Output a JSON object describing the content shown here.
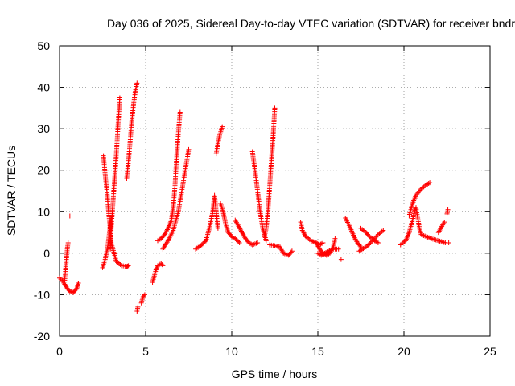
{
  "chart_data": {
    "type": "scatter",
    "title": "Day 036 of 2025, Sidereal Day-to-day VTEC variation (SDTVAR) for receiver bndr",
    "xlabel": "GPS time / hours",
    "ylabel": "SDTVAR / TECUs",
    "xlim": [
      0,
      25
    ],
    "ylim": [
      -20,
      50
    ],
    "xticks": [
      "0",
      "5",
      "10",
      "15",
      "20",
      "25"
    ],
    "yticks": [
      "-20",
      "-10",
      "0",
      "10",
      "20",
      "30",
      "40",
      "50"
    ],
    "grid": true,
    "marker": "plus",
    "color": "#ff0000",
    "arcs": [
      [
        [
          0.0,
          -6.0
        ],
        [
          0.15,
          -6.5
        ],
        [
          0.3,
          -7.5
        ],
        [
          0.45,
          -8.5
        ],
        [
          0.6,
          -9.2
        ],
        [
          0.8,
          -9.5
        ],
        [
          1.0,
          -8.5
        ],
        [
          1.1,
          -7.2
        ]
      ],
      [
        [
          0.3,
          -6.5
        ],
        [
          0.35,
          -4.0
        ],
        [
          0.4,
          -1.5
        ],
        [
          0.45,
          1.0
        ],
        [
          0.5,
          2.5
        ]
      ],
      [
        [
          0.6,
          9.0
        ]
      ],
      [
        [
          2.5,
          -3.5
        ],
        [
          2.65,
          -1.5
        ],
        [
          2.8,
          1.5
        ],
        [
          2.9,
          5.0
        ],
        [
          3.0,
          8.5
        ]
      ],
      [
        [
          2.55,
          23.5
        ],
        [
          2.65,
          19.0
        ],
        [
          2.75,
          15.0
        ],
        [
          2.85,
          10.0
        ],
        [
          2.95,
          5.5
        ],
        [
          3.0,
          2.5
        ],
        [
          3.1,
          1.0
        ],
        [
          3.3,
          -2.0
        ],
        [
          3.6,
          -3.0
        ],
        [
          3.9,
          -3.2
        ],
        [
          4.0,
          -3.0
        ]
      ],
      [
        [
          2.95,
          1.0
        ],
        [
          3.0,
          6.0
        ],
        [
          3.1,
          12.0
        ],
        [
          3.2,
          18.0
        ],
        [
          3.3,
          24.0
        ],
        [
          3.4,
          31.0
        ],
        [
          3.5,
          37.5
        ]
      ],
      [
        [
          3.9,
          18.0
        ],
        [
          4.0,
          22.0
        ],
        [
          4.1,
          27.0
        ],
        [
          4.2,
          32.0
        ],
        [
          4.3,
          36.0
        ],
        [
          4.4,
          39.0
        ],
        [
          4.5,
          41.0
        ]
      ],
      [
        [
          4.5,
          -14.0
        ],
        [
          4.55,
          -13.0
        ]
      ],
      [
        [
          4.75,
          -12.0
        ],
        [
          4.85,
          -10.5
        ],
        [
          4.95,
          -10.0
        ]
      ],
      [
        [
          5.4,
          -7.0
        ],
        [
          5.5,
          -5.5
        ],
        [
          5.6,
          -4.0
        ],
        [
          5.7,
          -3.0
        ],
        [
          5.9,
          -2.5
        ],
        [
          6.0,
          -3.0
        ]
      ],
      [
        [
          5.7,
          3.0
        ],
        [
          5.9,
          3.5
        ],
        [
          6.1,
          4.5
        ],
        [
          6.3,
          6.0
        ],
        [
          6.5,
          8.0
        ],
        [
          6.6,
          11.0
        ],
        [
          6.7,
          16.0
        ],
        [
          6.8,
          23.0
        ],
        [
          6.9,
          29.0
        ],
        [
          7.0,
          34.0
        ]
      ],
      [
        [
          6.0,
          1.0
        ],
        [
          6.3,
          3.0
        ],
        [
          6.6,
          5.5
        ],
        [
          6.9,
          10.0
        ],
        [
          7.1,
          15.0
        ],
        [
          7.3,
          20.0
        ],
        [
          7.5,
          25.0
        ]
      ],
      [
        [
          7.9,
          1.0
        ],
        [
          8.2,
          1.8
        ],
        [
          8.5,
          3.0
        ],
        [
          8.7,
          6.0
        ],
        [
          8.9,
          10.0
        ],
        [
          9.0,
          14.0
        ],
        [
          9.1,
          10.0
        ],
        [
          9.2,
          6.0
        ]
      ],
      [
        [
          9.1,
          24.0
        ],
        [
          9.2,
          26.5
        ],
        [
          9.3,
          28.5
        ],
        [
          9.45,
          30.5
        ]
      ],
      [
        [
          9.35,
          12.0
        ],
        [
          9.5,
          10.0
        ],
        [
          9.65,
          7.0
        ],
        [
          9.8,
          5.0
        ],
        [
          10.0,
          4.0
        ],
        [
          10.2,
          3.5
        ],
        [
          10.45,
          2.5
        ]
      ],
      [
        [
          10.2,
          8.0
        ],
        [
          10.4,
          6.5
        ],
        [
          10.6,
          5.0
        ],
        [
          10.8,
          3.5
        ],
        [
          11.0,
          2.5
        ],
        [
          11.2,
          2.0
        ],
        [
          11.5,
          2.5
        ]
      ],
      [
        [
          11.2,
          24.5
        ],
        [
          11.35,
          20.0
        ],
        [
          11.5,
          15.0
        ],
        [
          11.65,
          10.0
        ],
        [
          11.8,
          6.0
        ],
        [
          12.0,
          3.0
        ]
      ],
      [
        [
          11.9,
          4.0
        ],
        [
          12.0,
          6.0
        ],
        [
          12.1,
          10.0
        ],
        [
          12.2,
          16.0
        ],
        [
          12.3,
          22.0
        ],
        [
          12.4,
          28.0
        ],
        [
          12.5,
          35.0
        ]
      ],
      [
        [
          12.2,
          2.0
        ],
        [
          12.5,
          1.8
        ],
        [
          12.8,
          1.5
        ],
        [
          13.0,
          0.0
        ],
        [
          13.3,
          -0.5
        ],
        [
          13.5,
          0.5
        ]
      ],
      [
        [
          14.0,
          7.5
        ],
        [
          14.1,
          5.5
        ],
        [
          14.3,
          4.0
        ],
        [
          14.6,
          3.0
        ],
        [
          14.9,
          2.5
        ],
        [
          15.1,
          2.0
        ],
        [
          15.3,
          2.5
        ]
      ],
      [
        [
          14.9,
          2.5
        ],
        [
          15.1,
          1.0
        ],
        [
          15.3,
          0.0
        ],
        [
          15.5,
          -0.5
        ],
        [
          15.7,
          0.0
        ],
        [
          15.9,
          1.5
        ],
        [
          16.0,
          3.5
        ]
      ],
      [
        [
          15.0,
          0.0
        ],
        [
          15.2,
          -0.5
        ],
        [
          15.4,
          0.0
        ],
        [
          15.6,
          0.5
        ],
        [
          15.9,
          1.0
        ],
        [
          16.2,
          1.0
        ]
      ],
      [
        [
          16.35,
          -1.5
        ]
      ],
      [
        [
          16.6,
          8.5
        ],
        [
          16.9,
          6.0
        ],
        [
          17.1,
          4.0
        ],
        [
          17.3,
          2.5
        ],
        [
          17.5,
          1.5
        ]
      ],
      [
        [
          17.4,
          0.5
        ],
        [
          17.8,
          1.5
        ],
        [
          18.2,
          3.0
        ],
        [
          18.5,
          4.5
        ],
        [
          18.8,
          5.5
        ]
      ],
      [
        [
          17.5,
          6.0
        ],
        [
          17.8,
          5.0
        ],
        [
          18.0,
          4.0
        ],
        [
          18.3,
          3.0
        ],
        [
          18.5,
          2.5
        ]
      ],
      [
        [
          19.8,
          2.0
        ],
        [
          20.1,
          3.0
        ],
        [
          20.3,
          5.0
        ],
        [
          20.5,
          8.0
        ],
        [
          20.6,
          10.0
        ],
        [
          20.7,
          11.0
        ],
        [
          20.9,
          6.0
        ],
        [
          21.0,
          4.5
        ],
        [
          21.3,
          4.0
        ],
        [
          21.6,
          3.5
        ],
        [
          22.0,
          3.0
        ],
        [
          22.4,
          2.5
        ],
        [
          22.6,
          2.5
        ]
      ],
      [
        [
          20.3,
          9.0
        ],
        [
          20.5,
          12.0
        ],
        [
          20.7,
          14.0
        ],
        [
          21.0,
          15.5
        ],
        [
          21.3,
          16.5
        ],
        [
          21.5,
          17.0
        ]
      ],
      [
        [
          22.0,
          5.0
        ],
        [
          22.2,
          6.5
        ],
        [
          22.35,
          7.5
        ]
      ],
      [
        [
          22.5,
          9.5
        ],
        [
          22.55,
          10.5
        ]
      ]
    ]
  }
}
